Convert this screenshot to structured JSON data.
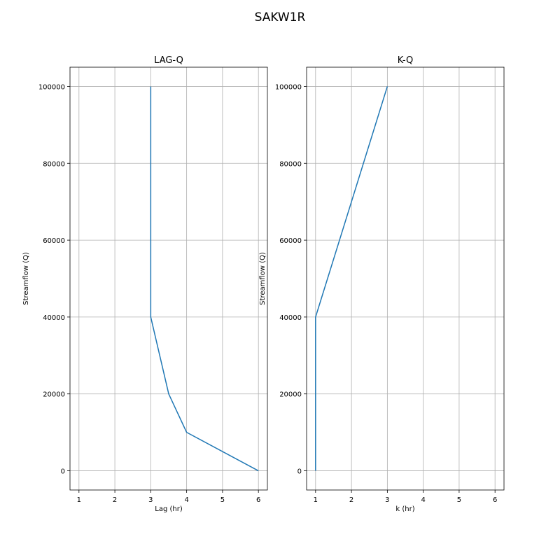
{
  "figure": {
    "suptitle": "SAKW1R",
    "line_color": "#1f77b4",
    "grid_color": "#b0b0b0"
  },
  "chart_data": [
    {
      "type": "line",
      "title": "LAG-Q",
      "xlabel": "Lag (hr)",
      "ylabel": "Streamflow (Q)",
      "xlim": [
        0.75,
        6.25
      ],
      "ylim": [
        -5000,
        105000
      ],
      "xticks": [
        1,
        2,
        3,
        4,
        5,
        6
      ],
      "yticks": [
        0,
        20000,
        40000,
        60000,
        80000,
        100000
      ],
      "grid": true,
      "series": [
        {
          "x": [
            6,
            4,
            3.5,
            3,
            3
          ],
          "y": [
            0,
            10000,
            20000,
            40000,
            100000
          ]
        }
      ]
    },
    {
      "type": "line",
      "title": "K-Q",
      "xlabel": "k (hr)",
      "ylabel": "Streamflow (Q)",
      "xlim": [
        0.75,
        6.25
      ],
      "ylim": [
        -5000,
        105000
      ],
      "xticks": [
        1,
        2,
        3,
        4,
        5,
        6
      ],
      "yticks": [
        0,
        20000,
        40000,
        60000,
        80000,
        100000
      ],
      "grid": true,
      "series": [
        {
          "x": [
            1,
            1,
            3
          ],
          "y": [
            0,
            40000,
            100000
          ]
        }
      ]
    }
  ]
}
